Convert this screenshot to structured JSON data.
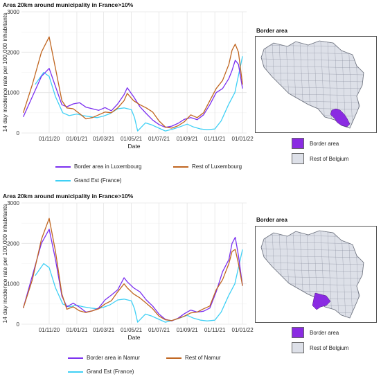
{
  "charts": [
    {
      "id": "top",
      "title": "Area 20km around municipality in France>10%",
      "ylabel": "14 day incidence rate per 100,000 inhabitants",
      "xlabel": "Date",
      "legend": {
        "border": "Border area in Luxembourg",
        "rest": "Rest of Luxembourg",
        "france": "Grand Est (France)"
      },
      "map": {
        "title": "Border area",
        "border_label": "Border area",
        "rest_label": "Rest of Belgium",
        "highlight": "south-east"
      }
    },
    {
      "id": "bottom",
      "title": "Area 20km around municipality in France>10%",
      "ylabel": "14 day incidence rate per 100,000 inhabitants",
      "xlabel": "Date",
      "legend": {
        "border": "Border area in Namur",
        "rest": "Rest of Namur",
        "france": "Grand Est (France)"
      },
      "map": {
        "title": "Border area",
        "border_label": "Border area",
        "rest_label": "Rest of Belgium",
        "highlight": "south"
      }
    }
  ],
  "colors": {
    "border": "#7b2ff0",
    "rest": "#c0651f",
    "france": "#3fd0f5",
    "map_border": "#8a2be2",
    "map_rest": "#dde0e8"
  },
  "chart_data": [
    {
      "type": "line",
      "title": "Area 20km around municipality in France>10%",
      "xlabel": "Date",
      "ylabel": "14 day incidence rate per 100,000 inhabitants",
      "ylim": [
        0,
        3000
      ],
      "yticks": [
        0,
        1000,
        2000,
        3000
      ],
      "xlim": [
        "2020-09-01",
        "2022-01-10"
      ],
      "xticks": [
        "01/11/20",
        "01/01/21",
        "01/03/21",
        "01/05/21",
        "01/07/21",
        "01/09/21",
        "01/11/21",
        "01/01/22"
      ],
      "xtick_dates": [
        "2020-11-01",
        "2021-01-01",
        "2021-03-01",
        "2021-05-01",
        "2021-07-01",
        "2021-09-01",
        "2021-11-01",
        "2022-01-01"
      ],
      "grid": true,
      "legend_position": "bottom",
      "series": [
        {
          "name": "Border area in Luxembourg",
          "x": [
            "2020-09-05",
            "2020-09-25",
            "2020-10-15",
            "2020-11-01",
            "2020-11-15",
            "2020-11-29",
            "2020-12-10",
            "2020-12-24",
            "2021-01-07",
            "2021-01-21",
            "2021-02-04",
            "2021-02-18",
            "2021-03-04",
            "2021-03-18",
            "2021-04-01",
            "2021-04-15",
            "2021-04-22",
            "2021-05-06",
            "2021-05-20",
            "2021-06-03",
            "2021-06-17",
            "2021-07-01",
            "2021-07-15",
            "2021-07-29",
            "2021-08-12",
            "2021-08-26",
            "2021-09-09",
            "2021-09-23",
            "2021-10-07",
            "2021-10-21",
            "2021-11-04",
            "2021-11-18",
            "2021-12-02",
            "2021-12-09",
            "2021-12-16",
            "2021-12-23",
            "2022-01-01"
          ],
          "y": [
            400,
            900,
            1400,
            1600,
            1150,
            700,
            650,
            720,
            750,
            640,
            600,
            560,
            630,
            550,
            720,
            950,
            1120,
            900,
            650,
            480,
            320,
            210,
            140,
            170,
            240,
            340,
            380,
            330,
            450,
            700,
            1000,
            1100,
            1350,
            1550,
            1800,
            1700,
            1100
          ]
        },
        {
          "name": "Rest of Luxembourg",
          "x": [
            "2020-09-05",
            "2020-09-25",
            "2020-10-15",
            "2020-11-01",
            "2020-11-15",
            "2020-11-29",
            "2020-12-10",
            "2020-12-24",
            "2021-01-07",
            "2021-01-21",
            "2021-02-04",
            "2021-02-18",
            "2021-03-04",
            "2021-03-18",
            "2021-04-01",
            "2021-04-15",
            "2021-04-22",
            "2021-05-06",
            "2021-05-20",
            "2021-06-03",
            "2021-06-17",
            "2021-07-01",
            "2021-07-15",
            "2021-07-29",
            "2021-08-12",
            "2021-08-26",
            "2021-09-09",
            "2021-09-23",
            "2021-10-07",
            "2021-10-21",
            "2021-11-04",
            "2021-11-18",
            "2021-12-02",
            "2021-12-09",
            "2021-12-16",
            "2021-12-23",
            "2022-01-01"
          ],
          "y": [
            500,
            1200,
            2000,
            2380,
            1600,
            800,
            620,
            600,
            480,
            350,
            380,
            450,
            520,
            500,
            620,
            800,
            980,
            800,
            700,
            620,
            520,
            300,
            150,
            120,
            180,
            280,
            450,
            380,
            500,
            800,
            1100,
            1300,
            1700,
            2050,
            2200,
            2000,
            1200
          ]
        },
        {
          "name": "Grand Est (France)",
          "x": [
            "2020-10-01",
            "2020-10-20",
            "2020-11-01",
            "2020-11-15",
            "2020-12-01",
            "2020-12-15",
            "2021-01-01",
            "2021-01-15",
            "2021-02-01",
            "2021-02-15",
            "2021-03-01",
            "2021-03-15",
            "2021-04-01",
            "2021-04-15",
            "2021-05-01",
            "2021-05-08",
            "2021-05-15",
            "2021-06-01",
            "2021-06-15",
            "2021-07-01",
            "2021-07-15",
            "2021-08-01",
            "2021-08-15",
            "2021-09-01",
            "2021-09-15",
            "2021-10-01",
            "2021-10-15",
            "2021-11-01",
            "2021-11-15",
            "2021-12-01",
            "2021-12-15",
            "2022-01-01"
          ],
          "y": [
            1200,
            1500,
            1400,
            900,
            500,
            430,
            470,
            430,
            400,
            380,
            420,
            480,
            600,
            620,
            580,
            380,
            50,
            250,
            200,
            120,
            50,
            100,
            150,
            220,
            150,
            100,
            80,
            100,
            300,
            700,
            1000,
            1900
          ]
        }
      ]
    },
    {
      "type": "line",
      "title": "Area 20km around municipality in France>10%",
      "xlabel": "Date",
      "ylabel": "14 day incidence rate per 100,000 inhabitants",
      "ylim": [
        0,
        3000
      ],
      "yticks": [
        0,
        1000,
        2000,
        3000
      ],
      "xlim": [
        "2020-09-01",
        "2022-01-10"
      ],
      "xticks": [
        "01/11/20",
        "01/01/21",
        "01/03/21",
        "01/05/21",
        "01/07/21",
        "01/09/21",
        "01/11/21",
        "01/01/22"
      ],
      "xtick_dates": [
        "2020-11-01",
        "2021-01-01",
        "2021-03-01",
        "2021-05-01",
        "2021-07-01",
        "2021-09-01",
        "2021-11-01",
        "2022-01-01"
      ],
      "grid": true,
      "legend_position": "bottom",
      "series": [
        {
          "name": "Border area in Namur",
          "x": [
            "2020-09-05",
            "2020-09-25",
            "2020-10-15",
            "2020-11-01",
            "2020-11-15",
            "2020-11-29",
            "2020-12-10",
            "2020-12-24",
            "2021-01-07",
            "2021-01-21",
            "2021-02-04",
            "2021-02-18",
            "2021-03-04",
            "2021-03-18",
            "2021-04-01",
            "2021-04-15",
            "2021-04-22",
            "2021-05-06",
            "2021-05-20",
            "2021-06-03",
            "2021-06-17",
            "2021-07-01",
            "2021-07-15",
            "2021-07-29",
            "2021-08-12",
            "2021-08-26",
            "2021-09-09",
            "2021-09-23",
            "2021-10-07",
            "2021-10-21",
            "2021-11-04",
            "2021-11-18",
            "2021-12-02",
            "2021-12-09",
            "2021-12-16",
            "2021-12-23",
            "2022-01-01"
          ],
          "y": [
            400,
            1200,
            2000,
            2350,
            1600,
            700,
            430,
            520,
            420,
            300,
            330,
            400,
            600,
            720,
            850,
            1150,
            1050,
            900,
            800,
            600,
            450,
            250,
            120,
            80,
            150,
            260,
            350,
            300,
            320,
            400,
            800,
            1300,
            1600,
            2000,
            2150,
            1700,
            950
          ]
        },
        {
          "name": "Rest of Namur",
          "x": [
            "2020-09-05",
            "2020-09-25",
            "2020-10-15",
            "2020-11-01",
            "2020-11-15",
            "2020-11-29",
            "2020-12-10",
            "2020-12-24",
            "2021-01-07",
            "2021-01-21",
            "2021-02-04",
            "2021-02-18",
            "2021-03-04",
            "2021-03-18",
            "2021-04-01",
            "2021-04-15",
            "2021-04-22",
            "2021-05-06",
            "2021-05-20",
            "2021-06-03",
            "2021-06-17",
            "2021-07-01",
            "2021-07-15",
            "2021-07-29",
            "2021-08-12",
            "2021-08-26",
            "2021-09-09",
            "2021-09-23",
            "2021-10-07",
            "2021-10-21",
            "2021-11-04",
            "2021-11-18",
            "2021-12-02",
            "2021-12-09",
            "2021-12-16",
            "2021-12-23",
            "2022-01-01"
          ],
          "y": [
            400,
            1100,
            2100,
            2620,
            1800,
            750,
            370,
            430,
            330,
            290,
            330,
            380,
            500,
            580,
            800,
            1000,
            900,
            750,
            650,
            520,
            380,
            200,
            110,
            90,
            140,
            200,
            280,
            300,
            380,
            450,
            850,
            1100,
            1500,
            1800,
            1850,
            1500,
            950
          ]
        },
        {
          "name": "Grand Est (France)",
          "x": [
            "2020-10-01",
            "2020-10-20",
            "2020-11-01",
            "2020-11-15",
            "2020-12-01",
            "2020-12-15",
            "2021-01-01",
            "2021-01-15",
            "2021-02-01",
            "2021-02-15",
            "2021-03-01",
            "2021-03-15",
            "2021-04-01",
            "2021-04-15",
            "2021-05-01",
            "2021-05-08",
            "2021-05-15",
            "2021-06-01",
            "2021-06-15",
            "2021-07-01",
            "2021-07-15",
            "2021-08-01",
            "2021-08-15",
            "2021-09-01",
            "2021-09-15",
            "2021-10-01",
            "2021-10-15",
            "2021-11-01",
            "2021-11-15",
            "2021-12-01",
            "2021-12-15",
            "2022-01-01"
          ],
          "y": [
            1200,
            1500,
            1400,
            900,
            500,
            430,
            470,
            430,
            400,
            380,
            420,
            480,
            600,
            620,
            580,
            380,
            50,
            250,
            200,
            120,
            50,
            100,
            150,
            220,
            150,
            100,
            80,
            100,
            300,
            700,
            1000,
            1850
          ]
        }
      ]
    }
  ]
}
